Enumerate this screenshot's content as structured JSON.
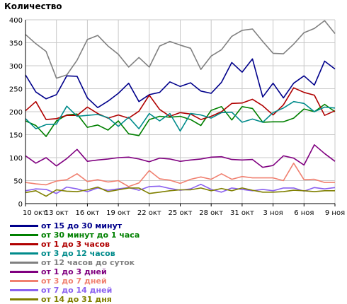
{
  "chart_data": {
    "type": "line",
    "ylabel": "Количество",
    "xlabel": "",
    "title": "",
    "ylim": [
      0,
      400
    ],
    "yticks": [
      0,
      50,
      100,
      150,
      200,
      250,
      300,
      350,
      400
    ],
    "xticks": [
      "10 окт",
      "13 окт",
      "16 окт",
      "19 окт",
      "22 окт",
      "25 окт",
      "28 окт",
      "31 окт",
      "3 ноя",
      "6 ноя",
      "9 ноя"
    ],
    "n_points": 31,
    "grid": true,
    "legend_position": "bottom-left",
    "series": [
      {
        "name": "от 15 до 30 минут",
        "color": "#00008b",
        "values": [
          280,
          243,
          228,
          237,
          278,
          277,
          230,
          209,
          223,
          240,
          262,
          222,
          237,
          242,
          265,
          255,
          263,
          245,
          240,
          264,
          307,
          286,
          315,
          232,
          262,
          230,
          262,
          278,
          258,
          310,
          293
        ]
      },
      {
        "name": "от 30 минут до 1 часа",
        "color": "#008000",
        "values": [
          180,
          170,
          146,
          180,
          193,
          195,
          166,
          171,
          160,
          180,
          152,
          148,
          183,
          190,
          188,
          190,
          183,
          170,
          203,
          211,
          182,
          211,
          207,
          177,
          178,
          178,
          186,
          206,
          200,
          216,
          200
        ]
      },
      {
        "name": "от 1 до 3 часов",
        "color": "#b00000",
        "values": [
          202,
          222,
          183,
          185,
          192,
          192,
          210,
          196,
          186,
          193,
          186,
          201,
          236,
          205,
          190,
          198,
          195,
          183,
          190,
          200,
          218,
          219,
          227,
          213,
          193,
          215,
          252,
          242,
          236,
          192,
          202
        ]
      },
      {
        "name": "от 3 до 12 часов",
        "color": "#008b8b",
        "values": [
          185,
          163,
          172,
          173,
          212,
          190,
          192,
          194,
          187,
          168,
          188,
          163,
          196,
          180,
          196,
          158,
          196,
          193,
          186,
          198,
          199,
          177,
          184,
          177,
          198,
          208,
          222,
          218,
          200,
          210,
          208
        ]
      },
      {
        "name": "от 12 часов до суток",
        "color": "#808080",
        "values": [
          368,
          348,
          331,
          273,
          280,
          312,
          357,
          366,
          343,
          325,
          297,
          318,
          297,
          343,
          353,
          345,
          338,
          292,
          321,
          335,
          364,
          377,
          380,
          353,
          327,
          326,
          347,
          372,
          381,
          398,
          370
        ]
      },
      {
        "name": "от 1 до 3 дней",
        "color": "#800080",
        "values": [
          104,
          88,
          100,
          82,
          98,
          118,
          92,
          95,
          97,
          100,
          101,
          97,
          91,
          99,
          97,
          92,
          95,
          97,
          101,
          102,
          96,
          95,
          96,
          79,
          83,
          104,
          99,
          84,
          128,
          109,
          92
        ]
      },
      {
        "name": "от 3 до 7 дней",
        "color": "#f08070",
        "values": [
          46,
          43,
          41,
          49,
          52,
          65,
          48,
          52,
          47,
          50,
          37,
          45,
          72,
          54,
          51,
          44,
          53,
          58,
          53,
          65,
          53,
          59,
          56,
          56,
          56,
          50,
          88,
          52,
          53,
          46,
          46
        ]
      },
      {
        "name": "от 7 до 14 дней",
        "color": "#8a60f0",
        "values": [
          28,
          32,
          31,
          22,
          36,
          32,
          26,
          34,
          29,
          32,
          35,
          29,
          37,
          38,
          33,
          29,
          32,
          42,
          31,
          25,
          34,
          31,
          28,
          31,
          28,
          34,
          34,
          27,
          35,
          32,
          35
        ]
      },
      {
        "name": "от 14 до 31 дня",
        "color": "#808000",
        "values": [
          24,
          28,
          16,
          30,
          27,
          26,
          30,
          36,
          26,
          30,
          34,
          34,
          22,
          25,
          28,
          30,
          30,
          34,
          28,
          33,
          28,
          34,
          29,
          25,
          25,
          26,
          29,
          28,
          26,
          28,
          28
        ]
      }
    ]
  }
}
